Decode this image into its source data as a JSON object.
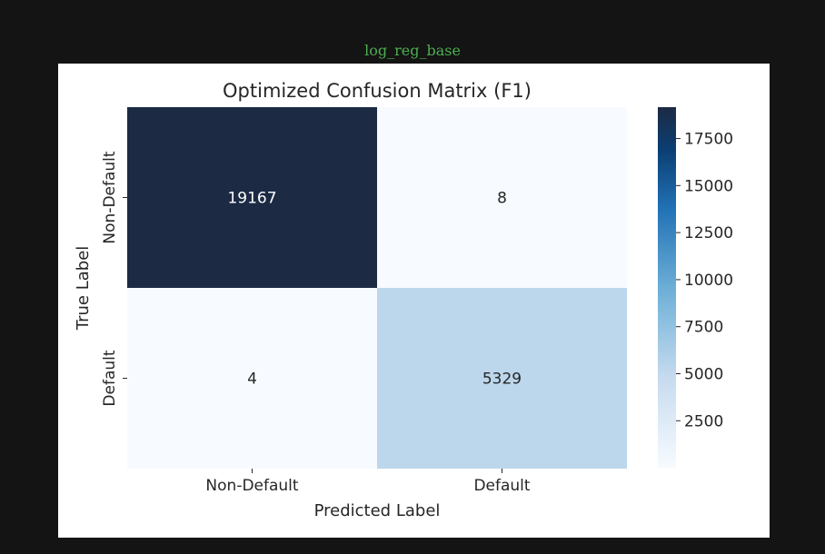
{
  "notebook": {
    "cell_label": "log_reg_base"
  },
  "chart_data": {
    "type": "heatmap",
    "title": "Optimized Confusion Matrix (F1)",
    "xlabel": "Predicted Label",
    "ylabel": "True Label",
    "x_categories": [
      "Non-Default",
      "Default"
    ],
    "y_categories": [
      "Non-Default",
      "Default"
    ],
    "values": [
      [
        19167,
        8
      ],
      [
        4,
        5329
      ]
    ],
    "annotations": [
      "19167",
      "8",
      "4",
      "5329"
    ],
    "colormap": "Blues",
    "colorbar": {
      "range": [
        4,
        19167
      ],
      "ticks": [
        2500,
        5000,
        7500,
        10000,
        12500,
        15000,
        17500
      ],
      "tick_labels": [
        "2500",
        "5000",
        "7500",
        "10000",
        "12500",
        "15000",
        "17500"
      ]
    },
    "grid": false,
    "legend": "none"
  }
}
